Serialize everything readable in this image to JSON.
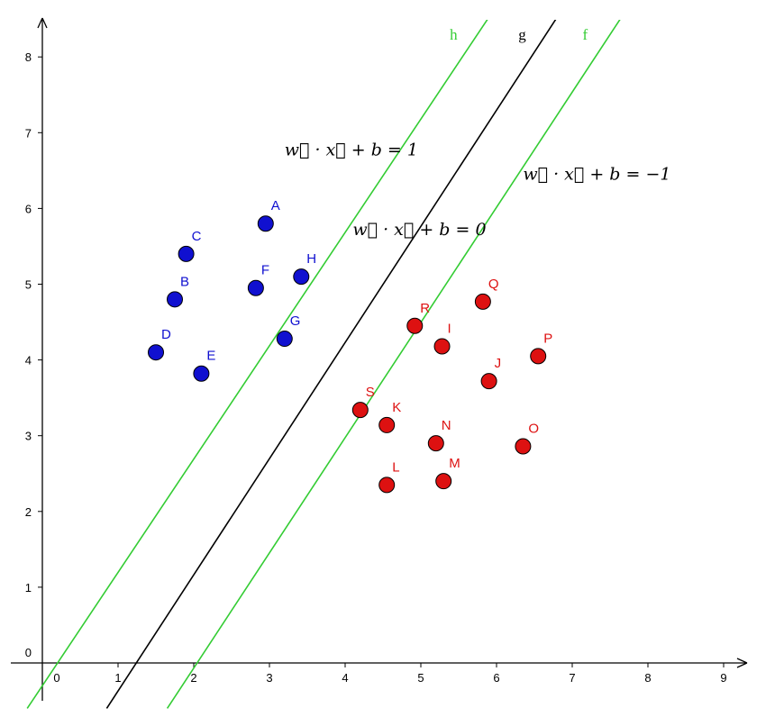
{
  "chart_data": {
    "type": "scatter",
    "xlim": [
      -0.3,
      9.3
    ],
    "ylim": [
      -0.6,
      8.6
    ],
    "x_ticks": [
      "0",
      "1",
      "2",
      "3",
      "4",
      "5",
      "6",
      "7",
      "8",
      "9"
    ],
    "y_ticks": [
      "0",
      "1",
      "2",
      "3",
      "4",
      "5",
      "6",
      "7",
      "8"
    ],
    "grid": false,
    "colors": {
      "blue": "#1010d0",
      "red": "#dd1111",
      "line_g": "#000000",
      "line_margin": "#33cc33"
    },
    "series": [
      {
        "color": "#1010d0",
        "points": [
          {
            "label": "A",
            "x": 2.95,
            "y": 5.8
          },
          {
            "label": "B",
            "x": 1.75,
            "y": 4.8
          },
          {
            "label": "C",
            "x": 1.9,
            "y": 5.4
          },
          {
            "label": "D",
            "x": 1.5,
            "y": 4.1
          },
          {
            "label": "E",
            "x": 2.1,
            "y": 3.82
          },
          {
            "label": "F",
            "x": 2.82,
            "y": 4.95
          },
          {
            "label": "G",
            "x": 3.2,
            "y": 4.28
          },
          {
            "label": "H",
            "x": 3.42,
            "y": 5.1
          }
        ]
      },
      {
        "color": "#dd1111",
        "points": [
          {
            "label": "I",
            "x": 5.28,
            "y": 4.18
          },
          {
            "label": "J",
            "x": 5.9,
            "y": 3.72
          },
          {
            "label": "K",
            "x": 4.55,
            "y": 3.14
          },
          {
            "label": "L",
            "x": 4.55,
            "y": 2.35
          },
          {
            "label": "M",
            "x": 5.3,
            "y": 2.4
          },
          {
            "label": "N",
            "x": 5.2,
            "y": 2.9
          },
          {
            "label": "O",
            "x": 6.35,
            "y": 2.86
          },
          {
            "label": "P",
            "x": 6.55,
            "y": 4.05
          },
          {
            "label": "Q",
            "x": 5.82,
            "y": 4.77
          },
          {
            "label": "R",
            "x": 4.92,
            "y": 4.45
          },
          {
            "label": "S",
            "x": 4.2,
            "y": 3.34
          }
        ]
      }
    ],
    "lines": [
      {
        "name": "h",
        "color": "#33cc33",
        "x1": -0.2,
        "y1": -0.6,
        "x2": 5.95,
        "y2": 8.6
      },
      {
        "name": "g",
        "color": "#000000",
        "x1": 0.85,
        "y1": -0.6,
        "x2": 6.85,
        "y2": 8.6
      },
      {
        "name": "f",
        "color": "#33cc33",
        "x1": 1.65,
        "y1": -0.6,
        "x2": 7.7,
        "y2": 8.6
      }
    ],
    "annotations": [
      {
        "text": "w⃗ · x⃗ + b = 1",
        "x": 3.2,
        "y": 6.7
      },
      {
        "text": "w⃗ · x⃗ + b = 0",
        "x": 4.1,
        "y": 5.65
      },
      {
        "text": "w⃗ · x⃗ + b = −1",
        "x": 6.35,
        "y": 6.38
      }
    ]
  }
}
